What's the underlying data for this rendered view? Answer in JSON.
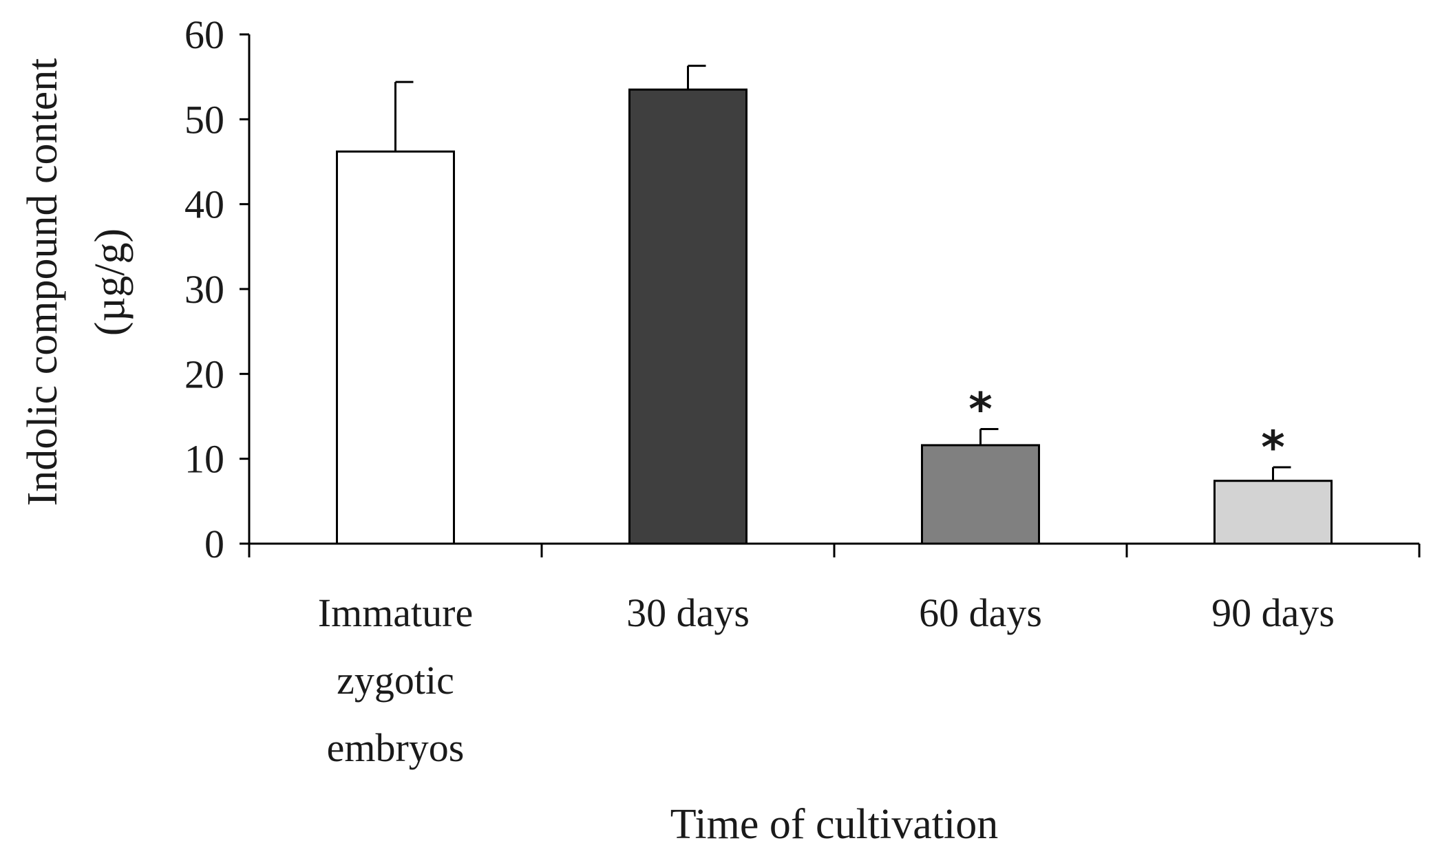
{
  "chart_data": {
    "type": "bar",
    "title": "",
    "xlabel": "Time of cultivation",
    "ylabel_lines": [
      "Indolic compound content",
      "(µg/g)"
    ],
    "ylim": [
      0,
      60
    ],
    "yticks": [
      0,
      10,
      20,
      30,
      40,
      50,
      60
    ],
    "categories": [
      [
        "Immature",
        "zygotic",
        "embryos"
      ],
      [
        "30 days"
      ],
      [
        "60 days"
      ],
      [
        "90 days"
      ]
    ],
    "values": [
      46.2,
      53.5,
      11.6,
      7.4
    ],
    "errors": [
      8.2,
      2.8,
      1.9,
      1.6
    ],
    "significance": [
      "",
      "",
      "*",
      "*"
    ],
    "bar_colors": [
      "#ffffff",
      "#3f3f3f",
      "#808080",
      "#d3d3d3"
    ],
    "edge_color": "#000000",
    "grid": false,
    "legend": "none"
  }
}
